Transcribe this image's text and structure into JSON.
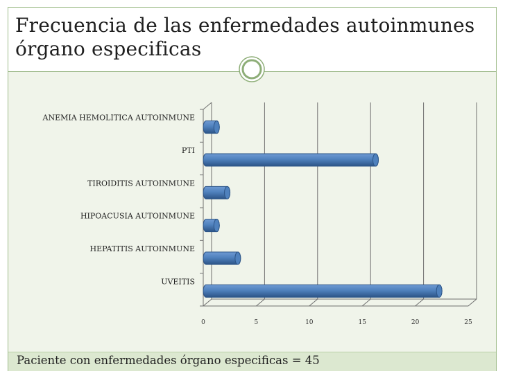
{
  "slide": {
    "title_line1": "Frecuencia de las enfermedades autoinmunes",
    "title_line2": "órgano especificas",
    "footer": "Paciente con enfermedades órgano especificas = 45"
  },
  "colors": {
    "bar_main": "#4f81bd",
    "bar_dark": "#2c5487",
    "bar_light": "#6f9ad3",
    "grid": "#6f6f6f",
    "frame": "#9fbd8a",
    "footer_bg": "#dce8d0",
    "content_bg": "#f0f4ea"
  },
  "chart_data": {
    "type": "bar",
    "orientation": "horizontal",
    "style": "3d-cylinder",
    "categories": [
      "ANEMIA HEMOLITICA AUTOINMUNE",
      "PTI",
      "TIROIDITIS AUTOINMUNE",
      "HIPOACUSIA AUTOINMUNE",
      "HEPATITIS AUTOINMUNE",
      "UVEITIS"
    ],
    "values": [
      1,
      16,
      2,
      1,
      3,
      22
    ],
    "xlim": [
      0,
      25
    ],
    "xticks": [
      "0",
      "5",
      "10",
      "15",
      "20",
      "25"
    ],
    "grid": true,
    "legend": "none",
    "title": "",
    "xlabel": "",
    "ylabel": ""
  }
}
